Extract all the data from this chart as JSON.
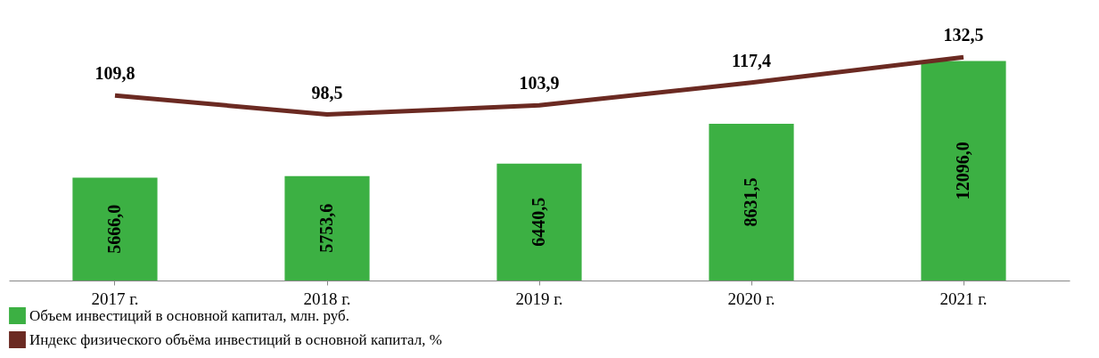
{
  "chart_data": {
    "type": "bar",
    "categories": [
      "2017 г.",
      "2018 г.",
      "2019 г.",
      "2020 г.",
      "2021 г."
    ],
    "series": [
      {
        "name": "Объем инвестиций в основной капитал, млн. руб.",
        "color": "#3cb043",
        "values": [
          5666.0,
          5753.6,
          6440.5,
          8631.5,
          12096.0
        ],
        "value_labels": [
          "5666,0",
          "5753,6",
          "6440,5",
          "8631,5",
          "12096,0"
        ]
      },
      {
        "name": "Индекс физического объёма инвестиций в основной капитал, %",
        "type": "line",
        "axis": "y2",
        "color": "#6b2a22",
        "values": [
          109.8,
          98.5,
          103.9,
          117.4,
          132.5
        ],
        "value_labels": [
          "109,8",
          "98,5",
          "103,9",
          "117,4",
          "132,5"
        ]
      }
    ],
    "tick_labels": "x",
    "legend": "bottom",
    "marker": "none",
    "line_style": "solid"
  }
}
